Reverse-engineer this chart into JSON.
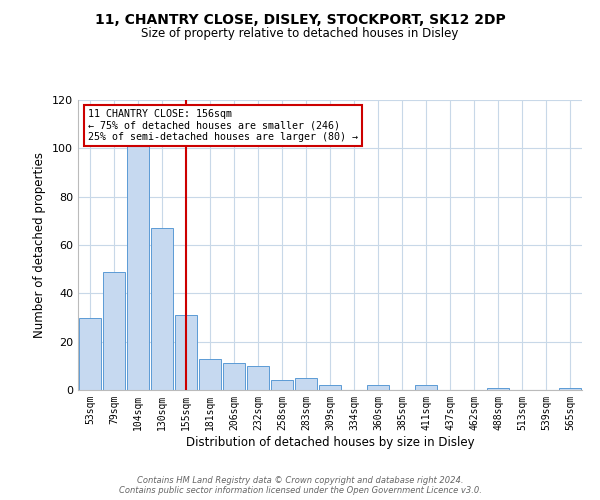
{
  "title": "11, CHANTRY CLOSE, DISLEY, STOCKPORT, SK12 2DP",
  "subtitle": "Size of property relative to detached houses in Disley",
  "xlabel": "Distribution of detached houses by size in Disley",
  "ylabel": "Number of detached properties",
  "bin_labels": [
    "53sqm",
    "79sqm",
    "104sqm",
    "130sqm",
    "155sqm",
    "181sqm",
    "206sqm",
    "232sqm",
    "258sqm",
    "283sqm",
    "309sqm",
    "334sqm",
    "360sqm",
    "385sqm",
    "411sqm",
    "437sqm",
    "462sqm",
    "488sqm",
    "513sqm",
    "539sqm",
    "565sqm"
  ],
  "values": [
    30,
    49,
    101,
    67,
    31,
    13,
    11,
    10,
    4,
    5,
    2,
    0,
    2,
    0,
    2,
    0,
    0,
    1,
    0,
    0,
    1
  ],
  "bar_color": "#c6d9f0",
  "bar_edge_color": "#5b9bd5",
  "grid_color": "#c8d8e8",
  "marker_bin_index": 4,
  "annotation_line1": "11 CHANTRY CLOSE: 156sqm",
  "annotation_line2": "← 75% of detached houses are smaller (246)",
  "annotation_line3": "25% of semi-detached houses are larger (80) →",
  "annotation_box_facecolor": "#ffffff",
  "annotation_box_edgecolor": "#cc0000",
  "marker_line_color": "#cc0000",
  "ylim": [
    0,
    120
  ],
  "yticks": [
    0,
    20,
    40,
    60,
    80,
    100,
    120
  ],
  "footer_line1": "Contains HM Land Registry data © Crown copyright and database right 2024.",
  "footer_line2": "Contains public sector information licensed under the Open Government Licence v3.0.",
  "bg_color": "#ffffff"
}
